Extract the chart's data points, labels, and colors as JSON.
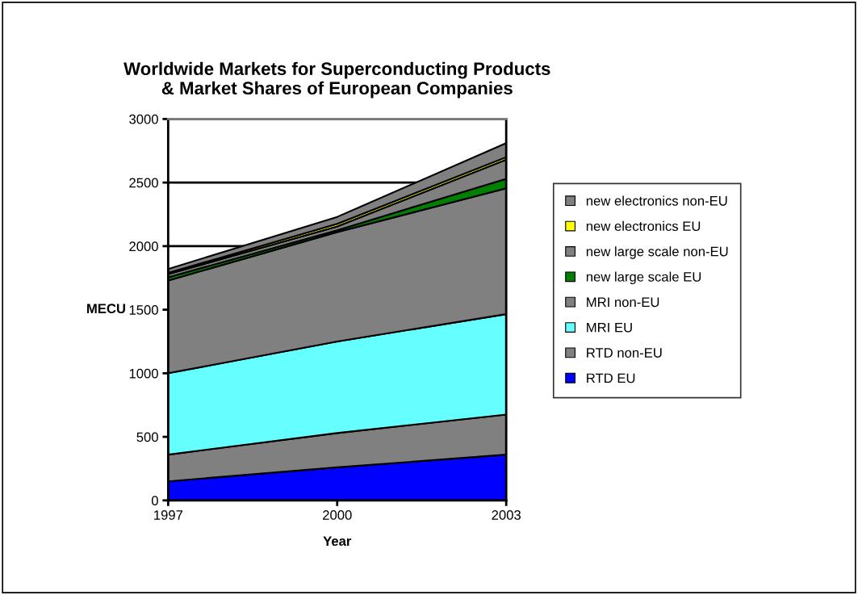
{
  "chart_data": {
    "type": "area",
    "stacked": true,
    "title": "Worldwide Markets for Superconducting Products\n& Market Shares of European Companies",
    "xlabel": "Year",
    "ylabel": "MECU",
    "x": [
      1997,
      2000,
      2003
    ],
    "xlim": [
      1997,
      2003
    ],
    "xticks": [
      1997,
      2000,
      2003
    ],
    "ylim": [
      0,
      3000
    ],
    "yticks": [
      0,
      500,
      1000,
      1500,
      2000,
      2500,
      3000
    ],
    "grid": "y",
    "legend": "right",
    "series": [
      {
        "name": "RTD EU",
        "color": "#0000ff",
        "values": [
          150,
          260,
          360
        ]
      },
      {
        "name": "RTD non-EU",
        "color": "#808080",
        "values": [
          210,
          270,
          315
        ]
      },
      {
        "name": "MRI EU",
        "color": "#66ffff",
        "values": [
          640,
          720,
          790
        ]
      },
      {
        "name": "MRI non-EU",
        "color": "#808080",
        "values": [
          730,
          860,
          990
        ]
      },
      {
        "name": "new large scale EU",
        "color": "#008000",
        "values": [
          25,
          15,
          75
        ]
      },
      {
        "name": "new large scale non-EU",
        "color": "#808080",
        "values": [
          25,
          30,
          150
        ]
      },
      {
        "name": "new electronics EU",
        "color": "#ffff00",
        "values": [
          10,
          20,
          20
        ]
      },
      {
        "name": "new electronics non-EU",
        "color": "#808080",
        "values": [
          30,
          55,
          110
        ]
      }
    ]
  }
}
